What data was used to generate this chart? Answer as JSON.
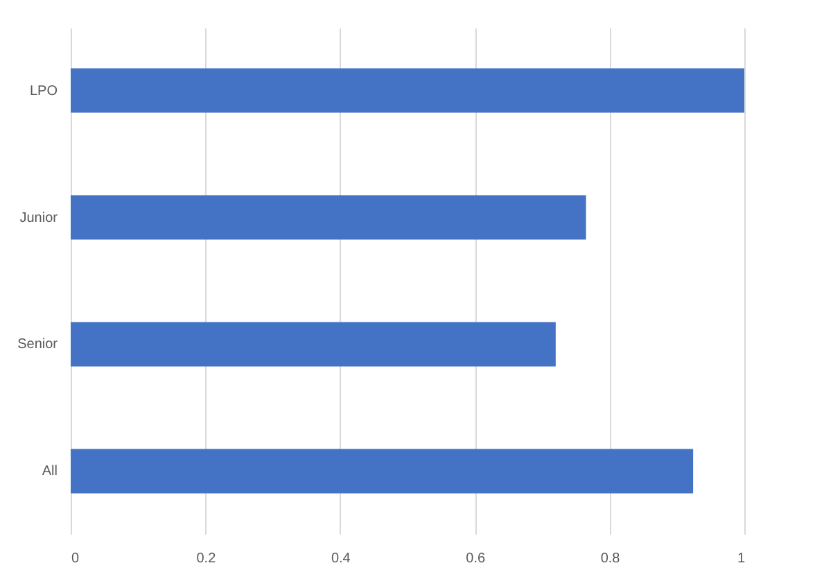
{
  "chart_data": {
    "type": "bar",
    "orientation": "horizontal",
    "categories": [
      "LPO",
      "Junior",
      "Senior",
      "All"
    ],
    "values": [
      1.0,
      0.765,
      0.72,
      0.924
    ],
    "color": "#4472c4",
    "xlim": [
      0,
      1
    ],
    "xticks": [
      0,
      0.2,
      0.4,
      0.6,
      0.8,
      1
    ],
    "grid": "x"
  }
}
